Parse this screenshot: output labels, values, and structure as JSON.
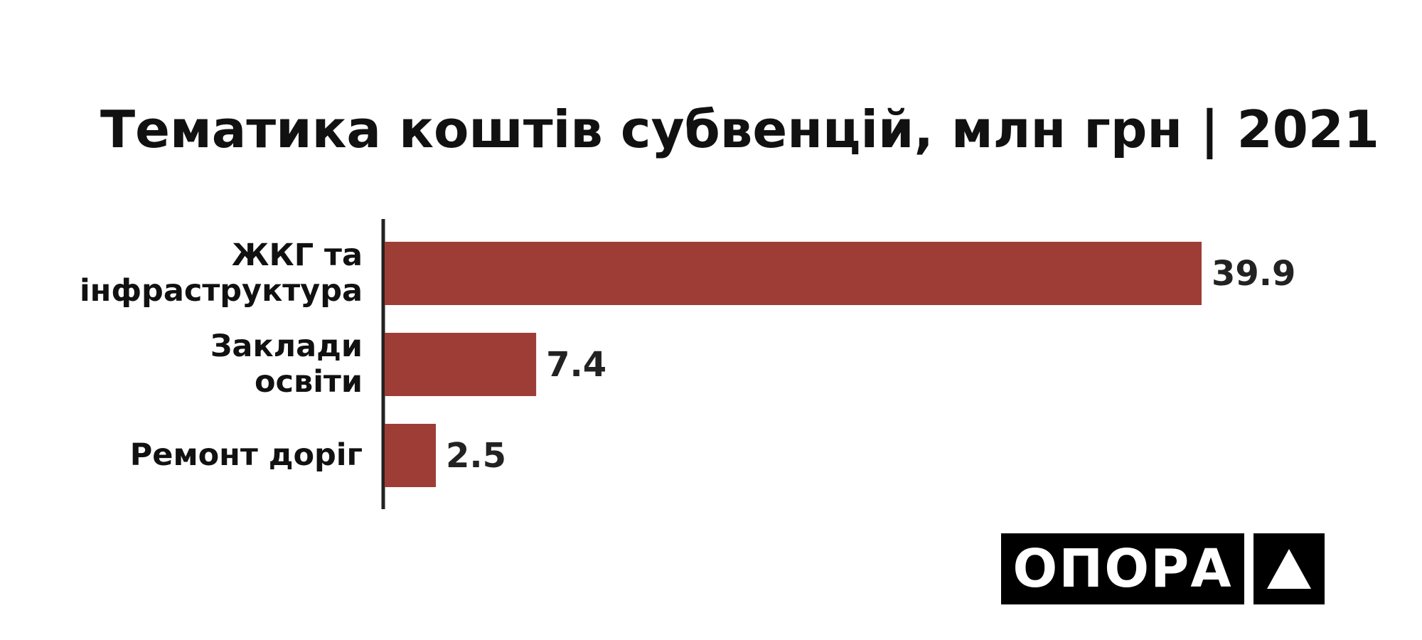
{
  "chart_data": {
    "type": "barh",
    "title": "Тематика коштів субвенцій, млн грн | 2021",
    "categories": [
      "ЖКГ та інфраструктура",
      "Заклади освіти",
      "Ремонт доріг"
    ],
    "values": [
      39.9,
      7.4,
      2.5
    ],
    "color": "#9e3d35"
  },
  "logo": {
    "text": "ОПОРА"
  }
}
